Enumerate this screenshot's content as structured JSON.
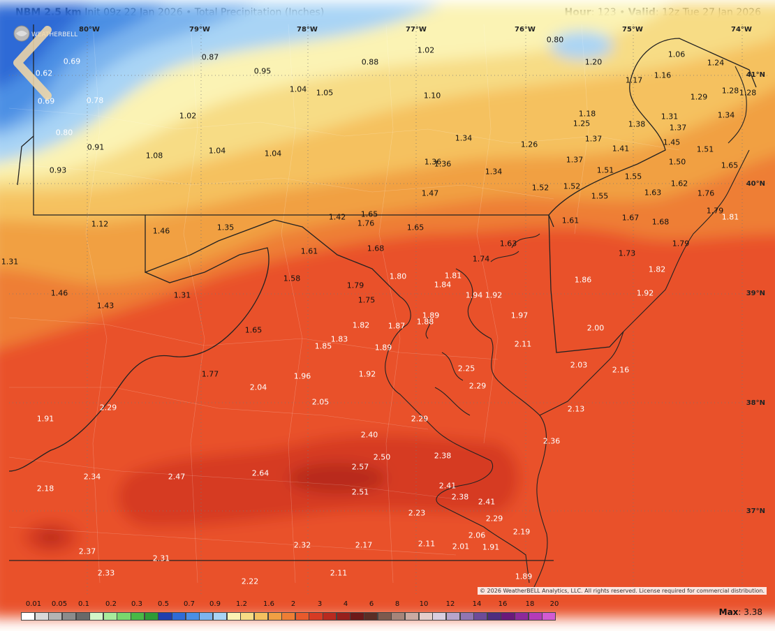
{
  "header": {
    "model": "NBM 2.5 km",
    "init": "Init 09z 22 Jan 2026",
    "separator": "•",
    "product": "Total Precipitation (Inches)",
    "hour_label": "Hour",
    "hour_value": ": 123",
    "valid_label": "Valid",
    "valid_value": ": 12z Tue 27 Jan 2026"
  },
  "longitudes": [
    "80°W",
    "79°W",
    "78°W",
    "77°W",
    "76°W",
    "75°W",
    "74°W"
  ],
  "latitudes": [
    "41°N",
    "40°N",
    "39°N",
    "38°N",
    "37°N"
  ],
  "values": [
    {
      "t": "0.69",
      "c": "w"
    },
    {
      "t": "0.62",
      "c": "w"
    },
    {
      "t": "0.87",
      "c": "d"
    },
    {
      "t": "0.95",
      "c": "d"
    },
    {
      "t": "0.88",
      "c": "d"
    },
    {
      "t": "1.02",
      "c": "d"
    },
    {
      "t": "0.80",
      "c": "d"
    },
    {
      "t": "1.20",
      "c": "d"
    },
    {
      "t": "1.06",
      "c": "d"
    },
    {
      "t": "1.24",
      "c": "d"
    },
    {
      "t": "0.69",
      "c": "w"
    },
    {
      "t": "0.78",
      "c": "w"
    },
    {
      "t": "1.04",
      "c": "d"
    },
    {
      "t": "1.05",
      "c": "d"
    },
    {
      "t": "1.10",
      "c": "d"
    },
    {
      "t": "1.17",
      "c": "d"
    },
    {
      "t": "1.16",
      "c": "d"
    },
    {
      "t": "1.29",
      "c": "d"
    },
    {
      "t": "1.28",
      "c": "d"
    },
    {
      "t": "1.28",
      "c": "d"
    },
    {
      "t": "1.02",
      "c": "d"
    },
    {
      "t": "1.18",
      "c": "d"
    },
    {
      "t": "1.25",
      "c": "d"
    },
    {
      "t": "1.38",
      "c": "d"
    },
    {
      "t": "1.31",
      "c": "d"
    },
    {
      "t": "1.37",
      "c": "d"
    },
    {
      "t": "1.34",
      "c": "d"
    },
    {
      "t": "1.45",
      "c": "d"
    },
    {
      "t": "0.80",
      "c": "w"
    },
    {
      "t": "0.91",
      "c": "d"
    },
    {
      "t": "1.08",
      "c": "d"
    },
    {
      "t": "1.04",
      "c": "d"
    },
    {
      "t": "1.04",
      "c": "d"
    },
    {
      "t": "1.34",
      "c": "d"
    },
    {
      "t": "1.26",
      "c": "d"
    },
    {
      "t": "1.37",
      "c": "d"
    },
    {
      "t": "1.41",
      "c": "d"
    },
    {
      "t": "1.51",
      "c": "d"
    },
    {
      "t": "0.93",
      "c": "d"
    },
    {
      "t": "1.36",
      "c": "d"
    },
    {
      "t": "1.36",
      "c": "d"
    },
    {
      "t": "1.34",
      "c": "d"
    },
    {
      "t": "1.37",
      "c": "d"
    },
    {
      "t": "1.50",
      "c": "d"
    },
    {
      "t": "1.65",
      "c": "d"
    },
    {
      "t": "1.51",
      "c": "d"
    },
    {
      "t": "1.55",
      "c": "d"
    },
    {
      "t": "1.47",
      "c": "d"
    },
    {
      "t": "1.52",
      "c": "d"
    },
    {
      "t": "1.52",
      "c": "d"
    },
    {
      "t": "1.62",
      "c": "d"
    },
    {
      "t": "1.63",
      "c": "d"
    },
    {
      "t": "1.76",
      "c": "d"
    },
    {
      "t": "1.55",
      "c": "d"
    },
    {
      "t": "1.12",
      "c": "d"
    },
    {
      "t": "1.46",
      "c": "d"
    },
    {
      "t": "1.35",
      "c": "d"
    },
    {
      "t": "1.42",
      "c": "d"
    },
    {
      "t": "1.65",
      "c": "d"
    },
    {
      "t": "1.76",
      "c": "d"
    },
    {
      "t": "1.65",
      "c": "d"
    },
    {
      "t": "1.61",
      "c": "d"
    },
    {
      "t": "1.67",
      "c": "d"
    },
    {
      "t": "1.68",
      "c": "d"
    },
    {
      "t": "1.79",
      "c": "d"
    },
    {
      "t": "1.81",
      "c": "w"
    },
    {
      "t": "1.61",
      "c": "d"
    },
    {
      "t": "1.68",
      "c": "d"
    },
    {
      "t": "1.63",
      "c": "d"
    },
    {
      "t": "1.73",
      "c": "d"
    },
    {
      "t": "1.79",
      "c": "d"
    },
    {
      "t": "1.31",
      "c": "d"
    },
    {
      "t": "1.74",
      "c": "d"
    },
    {
      "t": "1.58",
      "c": "d"
    },
    {
      "t": "1.80",
      "c": "w"
    },
    {
      "t": "1.81",
      "c": "w"
    },
    {
      "t": "1.84",
      "c": "w"
    },
    {
      "t": "1.82",
      "c": "w"
    },
    {
      "t": "1.86",
      "c": "w"
    },
    {
      "t": "1.46",
      "c": "d"
    },
    {
      "t": "1.79",
      "c": "d"
    },
    {
      "t": "1.92",
      "c": "w"
    },
    {
      "t": "1.43",
      "c": "d"
    },
    {
      "t": "1.31",
      "c": "d"
    },
    {
      "t": "1.75",
      "c": "d"
    },
    {
      "t": "1.94",
      "c": "w"
    },
    {
      "t": "1.92",
      "c": "w"
    },
    {
      "t": "1.89",
      "c": "w"
    },
    {
      "t": "1.97",
      "c": "w"
    },
    {
      "t": "1.88",
      "c": "w"
    },
    {
      "t": "1.82",
      "c": "w"
    },
    {
      "t": "1.87",
      "c": "w"
    },
    {
      "t": "2.00",
      "c": "w"
    },
    {
      "t": "1.65",
      "c": "d"
    },
    {
      "t": "1.83",
      "c": "w"
    },
    {
      "t": "1.85",
      "c": "w"
    },
    {
      "t": "1.89",
      "c": "w"
    },
    {
      "t": "2.11",
      "c": "w"
    },
    {
      "t": "1.77",
      "c": "d"
    },
    {
      "t": "1.96",
      "c": "w"
    },
    {
      "t": "1.92",
      "c": "w"
    },
    {
      "t": "2.25",
      "c": "w"
    },
    {
      "t": "2.03",
      "c": "w"
    },
    {
      "t": "2.16",
      "c": "w"
    },
    {
      "t": "2.04",
      "c": "w"
    },
    {
      "t": "2.29",
      "c": "w"
    },
    {
      "t": "2.05",
      "c": "w"
    },
    {
      "t": "2.29",
      "c": "w"
    },
    {
      "t": "2.13",
      "c": "w"
    },
    {
      "t": "1.91",
      "c": "w"
    },
    {
      "t": "2.29",
      "c": "w"
    },
    {
      "t": "2.40",
      "c": "w"
    },
    {
      "t": "2.36",
      "c": "w"
    },
    {
      "t": "2.50",
      "c": "w"
    },
    {
      "t": "2.38",
      "c": "w"
    },
    {
      "t": "2.57",
      "c": "w"
    },
    {
      "t": "2.64",
      "c": "w"
    },
    {
      "t": "2.34",
      "c": "w"
    },
    {
      "t": "2.47",
      "c": "w"
    },
    {
      "t": "2.18",
      "c": "w"
    },
    {
      "t": "2.41",
      "c": "w"
    },
    {
      "t": "2.51",
      "c": "w"
    },
    {
      "t": "2.38",
      "c": "w"
    },
    {
      "t": "2.41",
      "c": "w"
    },
    {
      "t": "2.23",
      "c": "w"
    },
    {
      "t": "2.29",
      "c": "w"
    },
    {
      "t": "2.19",
      "c": "w"
    },
    {
      "t": "2.06",
      "c": "w"
    },
    {
      "t": "2.37",
      "c": "w"
    },
    {
      "t": "2.32",
      "c": "w"
    },
    {
      "t": "2.17",
      "c": "w"
    },
    {
      "t": "2.11",
      "c": "w"
    },
    {
      "t": "2.01",
      "c": "w"
    },
    {
      "t": "1.91",
      "c": "w"
    },
    {
      "t": "2.31",
      "c": "w"
    },
    {
      "t": "2.33",
      "c": "w"
    },
    {
      "t": "2.11",
      "c": "w"
    },
    {
      "t": "2.22",
      "c": "w"
    },
    {
      "t": "1.89",
      "c": "w"
    }
  ],
  "copyright": "© 2026 WeatherBELL Analytics, LLC. All rights reserved. License required for commercial distribution.",
  "logo_text": "WEATHERBELL",
  "legend": {
    "labels": [
      "0.01",
      "0.05",
      "0.1",
      "0.2",
      "0.3",
      "0.5",
      "0.7",
      "0.9",
      "1.2",
      "1.6",
      "2",
      "3",
      "4",
      "6",
      "8",
      "10",
      "12",
      "14",
      "16",
      "18",
      "20"
    ],
    "colors": [
      "#ffffff",
      "#d9d9d9",
      "#b4b4b4",
      "#8c8c8c",
      "#696969",
      "#d2f5c8",
      "#a8ec9c",
      "#78d76e",
      "#4ab846",
      "#2e9b36",
      "#1f3fae",
      "#2f6bd6",
      "#4b8fe4",
      "#7cb4ee",
      "#a9d4f5",
      "#fbf3b4",
      "#f7dc85",
      "#f5c15f",
      "#f1a043",
      "#ee7e35",
      "#e85a2c",
      "#d63b24",
      "#b82a1f",
      "#96201c",
      "#6d1919",
      "#5a2e26",
      "#7d5a4e",
      "#a6857a",
      "#c9aaa2",
      "#e4cfcb",
      "#d9cfe0",
      "#b7a5cb",
      "#9176b2",
      "#6d4b98",
      "#4f2d7f",
      "#6a1a7a",
      "#8d2a9a",
      "#b43bb8",
      "#d25bd2"
    ]
  },
  "max_label": "Max",
  "max_value": ": 3.38"
}
